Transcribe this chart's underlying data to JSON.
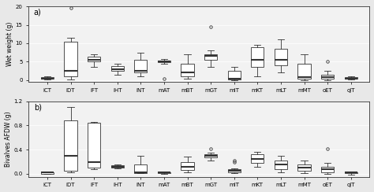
{
  "categories": [
    "iCT",
    "iDT",
    "iFT",
    "iHT",
    "iNT",
    "mAT",
    "mBT",
    "mGT",
    "mIT",
    "mKT",
    "mLT",
    "mMT",
    "oET",
    "oJT"
  ],
  "panel_a_ylabel": "Wet weight (g)",
  "panel_b_ylabel": "Bivalves AFDW (g)",
  "panel_a_label": "a)",
  "panel_b_label": "b)",
  "panel_a_ylim": [
    -0.5,
    20
  ],
  "panel_b_ylim": [
    -0.05,
    1.2
  ],
  "panel_a_yticks": [
    0,
    5,
    10,
    15,
    20
  ],
  "panel_b_yticks": [
    0.0,
    0.4,
    0.8,
    1.2
  ],
  "plot_bg": "#f2f2f2",
  "fig_bg": "#e8e8e8",
  "box_facecolor": "white",
  "box_edgecolor": "#333333",
  "median_color": "#333333",
  "whisker_color": "#333333",
  "flier_color": "#333333",
  "panel_a_boxes": [
    {
      "med": 0.5,
      "q1": 0.3,
      "q3": 0.9,
      "whislo": 0.1,
      "whishi": 1.1,
      "fliers": []
    },
    {
      "med": 2.5,
      "q1": 1.0,
      "q3": 10.5,
      "whislo": 0.2,
      "whishi": 11.5,
      "fliers": [
        19.5
      ]
    },
    {
      "med": 5.5,
      "q1": 5.0,
      "q3": 6.3,
      "whislo": 3.5,
      "whishi": 7.0,
      "fliers": []
    },
    {
      "med": 3.0,
      "q1": 2.5,
      "q3": 3.8,
      "whislo": 1.5,
      "whishi": 4.5,
      "fliers": []
    },
    {
      "med": 2.5,
      "q1": 2.0,
      "q3": 5.5,
      "whislo": 1.0,
      "whishi": 7.5,
      "fliers": []
    },
    {
      "med": 5.0,
      "q1": 4.8,
      "q3": 5.3,
      "whislo": 4.5,
      "whishi": 5.8,
      "fliers": [
        0.5
      ]
    },
    {
      "med": 2.0,
      "q1": 1.0,
      "q3": 4.5,
      "whislo": 0.3,
      "whishi": 7.0,
      "fliers": []
    },
    {
      "med": 6.5,
      "q1": 5.5,
      "q3": 7.0,
      "whislo": 3.5,
      "whishi": 8.0,
      "fliers": [
        14.5
      ]
    },
    {
      "med": 0.5,
      "q1": 0.2,
      "q3": 2.5,
      "whislo": 0.0,
      "whishi": 3.5,
      "fliers": []
    },
    {
      "med": 5.5,
      "q1": 3.5,
      "q3": 9.0,
      "whislo": 1.0,
      "whishi": 9.5,
      "fliers": []
    },
    {
      "med": 5.5,
      "q1": 4.0,
      "q3": 8.5,
      "whislo": 2.0,
      "whishi": 11.0,
      "fliers": []
    },
    {
      "med": 0.8,
      "q1": 0.3,
      "q3": 4.5,
      "whislo": 0.0,
      "whishi": 7.0,
      "fliers": []
    },
    {
      "med": 0.8,
      "q1": 0.3,
      "q3": 1.5,
      "whislo": 0.0,
      "whishi": 2.5,
      "fliers": [
        5.0
      ]
    },
    {
      "med": 0.5,
      "q1": 0.3,
      "q3": 0.8,
      "whislo": 0.1,
      "whishi": 1.0,
      "fliers": []
    }
  ],
  "panel_b_boxes": [
    {
      "med": 0.02,
      "q1": 0.005,
      "q3": 0.03,
      "whislo": 0.0,
      "whishi": 0.04,
      "fliers": []
    },
    {
      "med": 0.3,
      "q1": 0.05,
      "q3": 0.88,
      "whislo": 0.02,
      "whishi": 1.1,
      "fliers": []
    },
    {
      "med": 0.2,
      "q1": 0.1,
      "q3": 0.85,
      "whislo": 0.08,
      "whishi": 0.86,
      "fliers": []
    },
    {
      "med": 0.12,
      "q1": 0.1,
      "q3": 0.14,
      "whislo": 0.09,
      "whishi": 0.15,
      "fliers": []
    },
    {
      "med": 0.02,
      "q1": 0.01,
      "q3": 0.15,
      "whislo": 0.01,
      "whishi": 0.3,
      "fliers": []
    },
    {
      "med": 0.02,
      "q1": 0.01,
      "q3": 0.03,
      "whislo": 0.0,
      "whishi": 0.04,
      "fliers": []
    },
    {
      "med": 0.12,
      "q1": 0.07,
      "q3": 0.2,
      "whislo": 0.02,
      "whishi": 0.28,
      "fliers": []
    },
    {
      "med": 0.3,
      "q1": 0.27,
      "q3": 0.33,
      "whislo": 0.22,
      "whishi": 0.35,
      "fliers": [
        0.42
      ]
    },
    {
      "med": 0.05,
      "q1": 0.02,
      "q3": 0.08,
      "whislo": 0.01,
      "whishi": 0.09,
      "fliers": [
        0.22,
        0.2
      ]
    },
    {
      "med": 0.25,
      "q1": 0.18,
      "q3": 0.32,
      "whislo": 0.12,
      "whishi": 0.36,
      "fliers": []
    },
    {
      "med": 0.15,
      "q1": 0.08,
      "q3": 0.22,
      "whislo": 0.02,
      "whishi": 0.3,
      "fliers": []
    },
    {
      "med": 0.1,
      "q1": 0.05,
      "q3": 0.15,
      "whislo": 0.01,
      "whishi": 0.22,
      "fliers": []
    },
    {
      "med": 0.08,
      "q1": 0.03,
      "q3": 0.12,
      "whislo": 0.0,
      "whishi": 0.18,
      "fliers": [
        0.42
      ]
    },
    {
      "med": 0.02,
      "q1": 0.01,
      "q3": 0.03,
      "whislo": -0.02,
      "whishi": 0.04,
      "fliers": []
    }
  ]
}
